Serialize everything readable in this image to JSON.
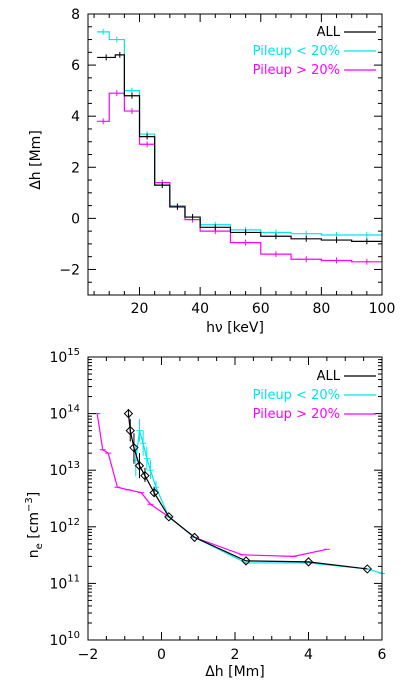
{
  "chart_data": [
    {
      "type": "line",
      "step": true,
      "xlabel": "hν [keV]",
      "ylabel": "Δh [Mm]",
      "xlim": [
        3,
        100
      ],
      "ylim": [
        -3,
        8
      ],
      "xticks": [
        20,
        40,
        60,
        80,
        100
      ],
      "yticks": [
        -2,
        0,
        2,
        4,
        6,
        8
      ],
      "legend_position": "top-right",
      "series": [
        {
          "name": "ALL",
          "color": "#000000",
          "bins": [
            [
              6,
              12,
              6.3
            ],
            [
              12,
              15,
              6.4
            ],
            [
              15,
              20,
              4.8
            ],
            [
              20,
              25,
              3.2
            ],
            [
              25,
              30,
              1.3
            ],
            [
              30,
              35,
              0.45
            ],
            [
              35,
              40,
              0.05
            ],
            [
              40,
              50,
              -0.35
            ],
            [
              50,
              60,
              -0.55
            ],
            [
              60,
              70,
              -0.7
            ],
            [
              70,
              80,
              -0.8
            ],
            [
              80,
              90,
              -0.85
            ],
            [
              90,
              100,
              -0.9
            ]
          ]
        },
        {
          "name": "Pileup < 20%",
          "color": "#00e5ee",
          "bins": [
            [
              6,
              10,
              7.3
            ],
            [
              10,
              15,
              7.0
            ],
            [
              15,
              20,
              5.0
            ],
            [
              20,
              25,
              3.3
            ],
            [
              25,
              30,
              1.3
            ],
            [
              30,
              35,
              0.5
            ],
            [
              35,
              40,
              0.05
            ],
            [
              40,
              50,
              -0.25
            ],
            [
              50,
              60,
              -0.45
            ],
            [
              60,
              70,
              -0.55
            ],
            [
              70,
              80,
              -0.6
            ],
            [
              80,
              90,
              -0.65
            ],
            [
              90,
              100,
              -0.65
            ]
          ]
        },
        {
          "name": "Pileup > 20%",
          "color": "#ff00ff",
          "bins": [
            [
              6,
              10,
              3.8
            ],
            [
              10,
              15,
              4.9
            ],
            [
              15,
              20,
              4.2
            ],
            [
              20,
              25,
              2.9
            ],
            [
              25,
              30,
              1.4
            ],
            [
              30,
              35,
              0.45
            ],
            [
              35,
              40,
              -0.05
            ],
            [
              40,
              50,
              -0.5
            ],
            [
              50,
              60,
              -0.95
            ],
            [
              60,
              70,
              -1.4
            ],
            [
              70,
              80,
              -1.6
            ],
            [
              80,
              90,
              -1.65
            ],
            [
              90,
              100,
              -1.7
            ]
          ]
        }
      ]
    },
    {
      "type": "line",
      "ylog": true,
      "xlabel": "Δh [Mm]",
      "ylabel": "n_e [cm^-3]",
      "xlim": [
        -2,
        6
      ],
      "ylim": [
        10000000000.0,
        1000000000000000.0
      ],
      "xticks": [
        -2,
        0,
        2,
        4,
        6
      ],
      "yticks": [
        "10^10",
        "10^11",
        "10^12",
        "10^13",
        "10^14",
        "10^15"
      ],
      "legend_position": "top-right",
      "series": [
        {
          "name": "ALL",
          "color": "#000000",
          "marker": "diamond",
          "points": [
            [
              -0.9,
              100000000000000.0,
              20000000000000.0
            ],
            [
              -0.85,
              50000000000000.0,
              30000000000000.0
            ],
            [
              -0.75,
              25000000000000.0,
              20000000000000.0
            ],
            [
              -0.6,
              12000000000000.0,
              8000000000000.0
            ],
            [
              -0.45,
              8000000000000.0,
              3000000000000.0
            ],
            [
              -0.2,
              4000000000000.0,
              1000000000000.0
            ],
            [
              0.2,
              1500000000000.0,
              0
            ],
            [
              0.9,
              650000000000.0,
              0
            ],
            [
              2.3,
              250000000000.0,
              0
            ],
            [
              4,
              240000000000.0,
              0
            ],
            [
              5.6,
              180000000000.0,
              0
            ]
          ]
        },
        {
          "name": "Pileup < 20%",
          "color": "#00e5ee",
          "points": [
            [
              -0.7,
              15000000000000.0,
              12000000000000.0
            ],
            [
              -0.6,
              50000000000000.0,
              30000000000000.0
            ],
            [
              -0.5,
              30000000000000.0,
              20000000000000.0
            ],
            [
              -0.4,
              16000000000000.0,
              10000000000000.0
            ],
            [
              -0.3,
              10000000000000.0,
              5000000000000.0
            ],
            [
              -0.15,
              5000000000000.0,
              1500000000000.0
            ],
            [
              0.2,
              1500000000000.0,
              0
            ],
            [
              0.9,
              650000000000.0,
              0
            ],
            [
              2.3,
              230000000000.0,
              0
            ],
            [
              4,
              230000000000.0,
              0
            ],
            [
              5.6,
              180000000000.0,
              0
            ],
            [
              6,
              150000000000.0,
              0
            ]
          ]
        },
        {
          "name": "Pileup > 20%",
          "color": "#ff00ff",
          "points": [
            [
              -1.75,
              100000000000000.0,
              0
            ],
            [
              -1.6,
              23000000000000.0,
              0
            ],
            [
              -1.45,
              20000000000000.0,
              0
            ],
            [
              -1.2,
              5000000000000.0,
              0
            ],
            [
              -0.9,
              4500000000000.0,
              0
            ],
            [
              -0.55,
              4000000000000.0,
              0
            ],
            [
              -0.3,
              2500000000000.0,
              0
            ],
            [
              0.2,
              1500000000000.0,
              0
            ],
            [
              0.9,
              650000000000.0,
              0
            ],
            [
              2.2,
              320000000000.0,
              0
            ],
            [
              3.6,
              300000000000.0,
              0
            ],
            [
              4.5,
              400000000000.0,
              0
            ]
          ]
        }
      ]
    }
  ]
}
